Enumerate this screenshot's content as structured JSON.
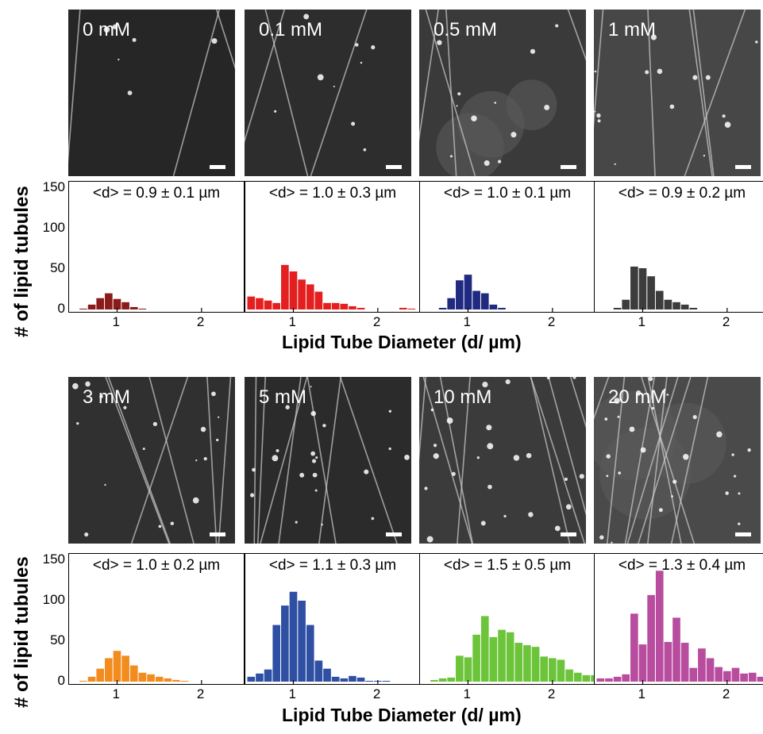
{
  "y_axis_label": "# of lipid tubules",
  "x_axis_label": "Lipid Tube Diameter (d/ µm)",
  "y_ticks": [
    "150",
    "100",
    "50",
    "0"
  ],
  "x_ticks": [
    "1",
    "2"
  ],
  "chart_data": [
    {
      "type": "bar",
      "concentration": "0 mM",
      "mean_label": "<d> = 0.9 ± 0.1 µm",
      "color": "#8b1a1a",
      "xlim": [
        0.45,
        2.5
      ],
      "ylim": [
        0,
        150
      ],
      "x": [
        0.6,
        0.7,
        0.8,
        0.9,
        1.0,
        1.1,
        1.2,
        1.3
      ],
      "values": [
        1,
        6,
        14,
        20,
        13,
        9,
        3,
        1
      ]
    },
    {
      "type": "bar",
      "concentration": "0.1 mM",
      "mean_label": "<d> = 1.0 ± 0.3 µm",
      "color": "#e41f1f",
      "xlim": [
        0.45,
        2.5
      ],
      "ylim": [
        0,
        150
      ],
      "x": [
        0.5,
        0.6,
        0.7,
        0.8,
        0.9,
        1.0,
        1.1,
        1.2,
        1.3,
        1.4,
        1.5,
        1.6,
        1.7,
        1.8,
        2.3,
        2.4
      ],
      "values": [
        16,
        14,
        11,
        8,
        55,
        47,
        37,
        31,
        22,
        8,
        8,
        7,
        4,
        2,
        2,
        1
      ]
    },
    {
      "type": "bar",
      "concentration": "0.5 mM",
      "mean_label": "<d> = 1.0 ± 0.1 µm",
      "color": "#1f2a80",
      "xlim": [
        0.45,
        2.5
      ],
      "ylim": [
        0,
        150
      ],
      "x": [
        0.7,
        0.8,
        0.9,
        1.0,
        1.1,
        1.2,
        1.3,
        1.4
      ],
      "values": [
        2,
        14,
        36,
        43,
        23,
        20,
        6,
        2
      ]
    },
    {
      "type": "bar",
      "concentration": "1 mM",
      "mean_label": "<d> = 0.9 ± 0.2 µm",
      "color": "#3c3c3c",
      "xlim": [
        0.45,
        2.5
      ],
      "ylim": [
        0,
        150
      ],
      "x": [
        0.7,
        0.8,
        0.9,
        1.0,
        1.1,
        1.2,
        1.3,
        1.4,
        1.5,
        1.6
      ],
      "values": [
        2,
        12,
        53,
        51,
        41,
        23,
        12,
        9,
        6,
        2
      ]
    },
    {
      "type": "bar",
      "concentration": "3 mM",
      "mean_label": "<d> = 1.0 ± 0.2 µm",
      "color": "#f28c1e",
      "xlim": [
        0.45,
        2.5
      ],
      "ylim": [
        0,
        150
      ],
      "x": [
        0.6,
        0.7,
        0.8,
        0.9,
        1.0,
        1.1,
        1.2,
        1.3,
        1.4,
        1.5,
        1.6,
        1.7,
        1.8
      ],
      "values": [
        1,
        6,
        16,
        29,
        38,
        32,
        20,
        11,
        9,
        6,
        4,
        2,
        1
      ]
    },
    {
      "type": "bar",
      "concentration": "5 mM",
      "mean_label": "<d> = 1.1 ± 0.3 µm",
      "color": "#2f4fa3",
      "xlim": [
        0.45,
        2.5
      ],
      "ylim": [
        0,
        150
      ],
      "x": [
        0.5,
        0.6,
        0.7,
        0.8,
        0.9,
        1.0,
        1.1,
        1.2,
        1.3,
        1.4,
        1.5,
        1.6,
        1.7,
        1.8,
        1.9,
        2.0,
        2.1
      ],
      "values": [
        6,
        10,
        15,
        70,
        94,
        111,
        100,
        70,
        26,
        16,
        6,
        4,
        7,
        5,
        1,
        1,
        1
      ]
    },
    {
      "type": "bar",
      "concentration": "10 mM",
      "mean_label": "<d> = 1.5 ± 0.5 µm",
      "color": "#6cc43a",
      "xlim": [
        0.45,
        2.5
      ],
      "ylim": [
        0,
        150
      ],
      "x": [
        0.6,
        0.7,
        0.8,
        0.9,
        1.0,
        1.1,
        1.2,
        1.3,
        1.4,
        1.5,
        1.6,
        1.7,
        1.8,
        1.9,
        2.0,
        2.1,
        2.2,
        2.3,
        2.4,
        2.5
      ],
      "values": [
        2,
        4,
        5,
        32,
        30,
        58,
        81,
        55,
        64,
        61,
        48,
        45,
        43,
        31,
        29,
        27,
        15,
        11,
        8,
        8
      ]
    },
    {
      "type": "bar",
      "concentration": "20 mM",
      "mean_label": "<d> = 1.3 ± 0.4 µm",
      "color": "#b84c9e",
      "xlim": [
        0.45,
        2.5
      ],
      "ylim": [
        0,
        150
      ],
      "x": [
        0.5,
        0.6,
        0.7,
        0.8,
        0.9,
        1.0,
        1.1,
        1.2,
        1.3,
        1.4,
        1.5,
        1.6,
        1.7,
        1.8,
        1.9,
        2.0,
        2.1,
        2.2,
        2.3,
        2.4,
        2.5
      ],
      "values": [
        4,
        4,
        6,
        9,
        84,
        46,
        107,
        137,
        49,
        79,
        48,
        17,
        41,
        29,
        18,
        13,
        17,
        10,
        11,
        6,
        5
      ]
    }
  ]
}
